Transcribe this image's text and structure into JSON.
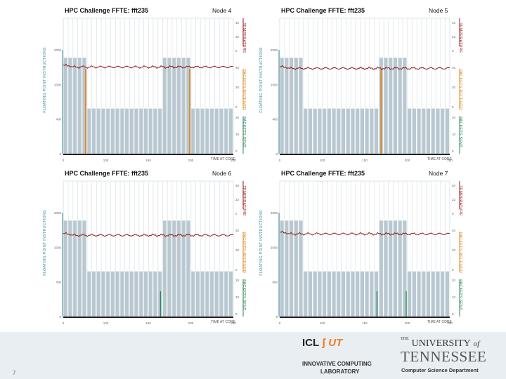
{
  "slide_number": "7",
  "labels": {
    "floating_point": "FLOATING POINT INSTRUCTIONS",
    "temperature": "TEMPERATURE",
    "packets_received": "PACKETS RECEIVED",
    "packets_sent": "PACKETS SENT",
    "time": "TIME AT CORE"
  },
  "colors": {
    "bars": "#b9c8d0",
    "bar_grid": "#ffffff",
    "temperature": "#8b1a1a",
    "packets_received": "#d8892a",
    "packets_sent": "#2a8a5a",
    "fp_axis": "#3d8a9a"
  },
  "chart_data": [
    {
      "type": "bar",
      "title": "HPC Challenge FFTE: fft235",
      "node": "Node 4",
      "x_ticks": [
        "0",
        "100",
        "150",
        "200",
        "250"
      ],
      "left_ticks": [
        "2000",
        "1000",
        "400",
        "0"
      ],
      "temp_ticks": [
        "40",
        "22",
        "0"
      ],
      "recv_ticks": [
        "40",
        "20",
        "0"
      ],
      "sent_ticks": [
        "20",
        "10",
        "0"
      ],
      "xlim": [
        0,
        250
      ],
      "fp_high": 1700,
      "fp_low": 800,
      "fp_max": 2400,
      "high_segments": [
        [
          0,
          33
        ],
        [
          143,
          186
        ]
      ],
      "temp_level": 0.64,
      "recv_spikes": [
        33,
        186
      ],
      "sent_spikes": []
    },
    {
      "type": "bar",
      "title": "HPC Challenge FFTE: fft235",
      "node": "Node 5",
      "x_ticks": [
        "0",
        "100",
        "150",
        "200",
        "250"
      ],
      "left_ticks": [
        "2000",
        "1000",
        "400",
        "0"
      ],
      "temp_ticks": [
        "40",
        "22",
        "0"
      ],
      "recv_ticks": [
        "40",
        "20",
        "0"
      ],
      "sent_ticks": [
        "20",
        "10",
        "0"
      ],
      "xlim": [
        0,
        250
      ],
      "fp_high": 1700,
      "fp_low": 800,
      "fp_max": 2400,
      "high_segments": [
        [
          0,
          33
        ],
        [
          143,
          186
        ]
      ],
      "temp_level": 0.63,
      "recv_spikes": [
        149
      ],
      "sent_spikes": []
    },
    {
      "type": "bar",
      "title": "HPC Challenge FFTE: fft235",
      "node": "Node 6",
      "x_ticks": [
        "0",
        "100",
        "150",
        "200",
        "250"
      ],
      "left_ticks": [
        "2000",
        "1000",
        "400",
        "0"
      ],
      "temp_ticks": [
        "40",
        "22",
        "0"
      ],
      "recv_ticks": [
        "40",
        "20",
        "0"
      ],
      "sent_ticks": [
        "20",
        "10",
        "0"
      ],
      "xlim": [
        0,
        250
      ],
      "fp_high": 1700,
      "fp_low": 800,
      "fp_max": 2400,
      "high_segments": [
        [
          0,
          33
        ],
        [
          143,
          186
        ]
      ],
      "temp_level": 0.6,
      "recv_spikes": [],
      "sent_spikes": [
        143
      ]
    },
    {
      "type": "bar",
      "title": "HPC Challenge FFTE: fft235",
      "node": "Node 7",
      "x_ticks": [
        "0",
        "100",
        "150",
        "200",
        "250"
      ],
      "left_ticks": [
        "2000",
        "1000",
        "400",
        "0"
      ],
      "temp_ticks": [
        "40",
        "22",
        "0"
      ],
      "recv_ticks": [
        "40",
        "20",
        "0"
      ],
      "sent_ticks": [
        "20",
        "10",
        "0"
      ],
      "xlim": [
        0,
        250
      ],
      "fp_high": 1700,
      "fp_low": 800,
      "fp_max": 2400,
      "high_segments": [
        [
          0,
          33
        ],
        [
          143,
          186
        ]
      ],
      "temp_level": 0.61,
      "recv_spikes": [],
      "sent_spikes": [
        143,
        186
      ]
    }
  ],
  "footer": {
    "icl_logo": "ICL",
    "icl_logo_ut": "UT",
    "icl_name_line1": "INNOVATIVE COMPUTING",
    "icl_name_line2": "LABORATORY",
    "ut_the": "THE",
    "ut_university": "UNIVERSITY",
    "ut_of": "of",
    "ut_tennessee": "TENNESSEE",
    "ut_department": "Computer Science Department"
  }
}
